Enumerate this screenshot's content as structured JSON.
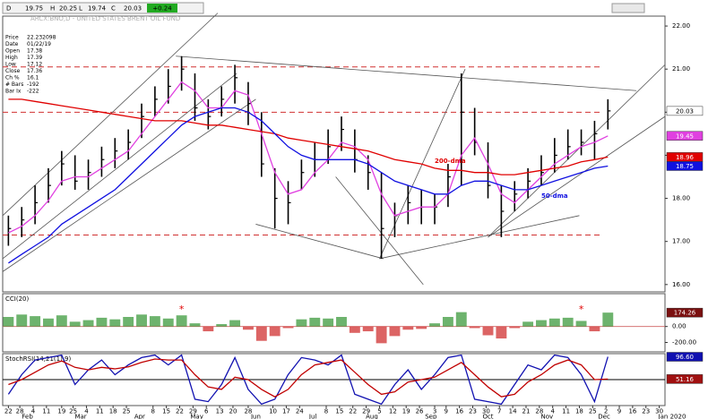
{
  "toolbar": {
    "period": "D",
    "open": 19.75,
    "high_label": "H",
    "high": 20.25,
    "low_label": "L",
    "low": 19.74,
    "close_label": "C",
    "close": 20.03,
    "change": "+0.24",
    "title": "ARCX:BNO,D - UNITED STATES BRENT OIL FUND"
  },
  "info_panel": [
    {
      "label": "Price",
      "value": "22.232098"
    },
    {
      "label": "Date",
      "value": "01/22/19"
    },
    {
      "label": "Open",
      "value": "17.38"
    },
    {
      "label": "High",
      "value": "17.39"
    },
    {
      "label": "Low",
      "value": "17.12"
    },
    {
      "label": "Close",
      "value": "17.36"
    },
    {
      "label": "Ch %",
      "value": "16.1"
    },
    {
      "label": "# Bars",
      "value": "-192"
    },
    {
      "label": "Bar Ix",
      "value": "-222"
    }
  ],
  "chart_data": [
    {
      "type": "ohlc",
      "x": [
        0,
        7,
        14,
        21,
        28,
        35,
        42,
        49,
        56,
        63,
        70,
        77,
        84,
        91,
        98,
        105,
        112,
        119,
        126,
        133,
        140,
        147,
        154,
        161,
        168,
        175,
        182,
        189,
        196,
        203,
        210,
        217,
        224,
        231,
        238,
        245,
        252,
        259,
        266,
        273,
        280,
        287,
        294,
        301,
        308,
        315
      ],
      "high": [
        17.6,
        17.8,
        18.3,
        18.7,
        19.1,
        19.0,
        18.9,
        19.2,
        19.4,
        19.6,
        20.2,
        20.6,
        21.0,
        21.3,
        20.9,
        20.3,
        20.6,
        21.1,
        20.7,
        20.0,
        18.7,
        18.4,
        18.9,
        19.3,
        19.6,
        19.9,
        19.6,
        19.0,
        18.6,
        17.9,
        18.3,
        18.2,
        18.1,
        18.8,
        20.9,
        20.1,
        19.3,
        18.3,
        18.4,
        18.7,
        19.0,
        19.4,
        19.6,
        19.6,
        19.8,
        20.3
      ],
      "low": [
        16.9,
        17.1,
        17.4,
        17.9,
        18.3,
        18.2,
        18.2,
        18.5,
        18.7,
        18.9,
        19.4,
        19.9,
        20.2,
        20.5,
        19.8,
        19.6,
        19.9,
        20.2,
        19.7,
        18.5,
        17.3,
        17.4,
        18.2,
        18.5,
        18.8,
        19.1,
        18.6,
        18.2,
        16.6,
        17.1,
        17.4,
        17.4,
        17.4,
        17.8,
        18.3,
        19.0,
        18.0,
        17.1,
        17.7,
        18.0,
        18.3,
        18.6,
        18.9,
        19.0,
        18.9,
        19.6
      ],
      "close": [
        17.3,
        17.5,
        17.9,
        18.3,
        18.8,
        18.4,
        18.6,
        18.9,
        19.1,
        19.3,
        19.9,
        20.3,
        20.6,
        21.0,
        20.1,
        19.9,
        20.3,
        20.8,
        20.2,
        18.8,
        18.0,
        17.9,
        18.6,
        18.9,
        19.2,
        19.6,
        18.9,
        18.6,
        17.3,
        17.6,
        17.9,
        17.8,
        17.8,
        18.5,
        20.0,
        19.3,
        18.3,
        17.7,
        18.1,
        18.4,
        18.6,
        19.0,
        19.2,
        19.3,
        19.5,
        20.03
      ],
      "color": "#000000",
      "series": [
        {
          "color": "#e040e0",
          "values": [
            17.2,
            17.35,
            17.6,
            17.95,
            18.4,
            18.5,
            18.5,
            18.7,
            18.9,
            19.1,
            19.5,
            19.9,
            20.3,
            20.7,
            20.5,
            20.1,
            20.1,
            20.5,
            20.4,
            19.5,
            18.6,
            18.1,
            18.2,
            18.6,
            18.9,
            19.3,
            19.2,
            18.9,
            18.1,
            17.6,
            17.7,
            17.8,
            17.8,
            18.1,
            19.0,
            19.4,
            18.8,
            18.1,
            17.9,
            18.2,
            18.5,
            18.8,
            19.0,
            19.2,
            19.3,
            19.45
          ]
        },
        {
          "name": "200-dma",
          "color": "#e00000",
          "values": [
            20.3,
            20.3,
            20.25,
            20.2,
            20.15,
            20.1,
            20.05,
            20.0,
            19.95,
            19.9,
            19.85,
            19.8,
            19.8,
            19.8,
            19.75,
            19.7,
            19.7,
            19.65,
            19.6,
            19.55,
            19.5,
            19.4,
            19.35,
            19.3,
            19.25,
            19.2,
            19.15,
            19.1,
            19.0,
            18.9,
            18.85,
            18.8,
            18.7,
            18.65,
            18.65,
            18.6,
            18.6,
            18.55,
            18.55,
            18.6,
            18.65,
            18.7,
            18.75,
            18.85,
            18.9,
            18.96
          ]
        },
        {
          "name": "50-dma",
          "color": "#1010e0",
          "values": [
            16.5,
            16.7,
            16.9,
            17.1,
            17.4,
            17.6,
            17.8,
            18.0,
            18.2,
            18.5,
            18.8,
            19.1,
            19.4,
            19.7,
            19.9,
            20.0,
            20.1,
            20.1,
            20.0,
            19.8,
            19.5,
            19.2,
            19.0,
            18.9,
            18.9,
            18.9,
            18.9,
            18.8,
            18.6,
            18.4,
            18.3,
            18.2,
            18.1,
            18.1,
            18.3,
            18.4,
            18.4,
            18.3,
            18.2,
            18.2,
            18.3,
            18.4,
            18.5,
            18.6,
            18.7,
            18.75
          ]
        }
      ],
      "hlines": [
        21.05,
        20.0,
        17.15
      ],
      "trendlines": [
        [
          -3,
          17.6,
          110,
          22.3
        ],
        [
          -3,
          16.6,
          120,
          20.9
        ],
        [
          -3,
          16.3,
          130,
          20.3
        ],
        [
          88,
          21.3,
          330,
          20.5
        ],
        [
          130,
          17.4,
          197,
          16.6
        ],
        [
          195,
          16.6,
          300,
          17.6
        ],
        [
          195,
          16.6,
          240,
          21.0
        ],
        [
          252,
          17.1,
          345,
          21.1
        ],
        [
          252,
          17.1,
          345,
          19.9
        ],
        [
          172,
          18.5,
          218,
          16.0
        ]
      ],
      "xlim": [
        -3,
        345
      ],
      "ylim": [
        15.83,
        22.23
      ],
      "yticks": [
        {
          "value": 16,
          "label": "16.00"
        },
        {
          "value": 17,
          "label": "17.00"
        },
        {
          "value": 18,
          "label": "18.00"
        },
        {
          "value": 19,
          "label": "19.00"
        },
        {
          "value": 20,
          "label": "20.00"
        },
        {
          "value": 21,
          "label": "21.00"
        },
        {
          "value": 22,
          "label": "22.00"
        }
      ],
      "xticks": [
        {
          "value": 0,
          "label": "22"
        },
        {
          "value": 6,
          "label": "28"
        },
        {
          "value": 13,
          "label": "4"
        },
        {
          "value": 20,
          "label": "11"
        },
        {
          "value": 28,
          "label": "19"
        },
        {
          "value": 34,
          "label": "25"
        },
        {
          "value": 41,
          "label": "4"
        },
        {
          "value": 48,
          "label": "11"
        },
        {
          "value": 55,
          "label": "18"
        },
        {
          "value": 62,
          "label": "25"
        },
        {
          "value": 76,
          "label": "8"
        },
        {
          "value": 83,
          "label": "15"
        },
        {
          "value": 90,
          "label": "22"
        },
        {
          "value": 97,
          "label": "29"
        },
        {
          "value": 104,
          "label": "6"
        },
        {
          "value": 111,
          "label": "13"
        },
        {
          "value": 118,
          "label": "20"
        },
        {
          "value": 126,
          "label": "28"
        },
        {
          "value": 139,
          "label": "10"
        },
        {
          "value": 146,
          "label": "17"
        },
        {
          "value": 153,
          "label": "24"
        },
        {
          "value": 167,
          "label": "8"
        },
        {
          "value": 174,
          "label": "15"
        },
        {
          "value": 181,
          "label": "22"
        },
        {
          "value": 188,
          "label": "29"
        },
        {
          "value": 195,
          "label": "5"
        },
        {
          "value": 202,
          "label": "12"
        },
        {
          "value": 209,
          "label": "19"
        },
        {
          "value": 216,
          "label": "26"
        },
        {
          "value": 224,
          "label": "3"
        },
        {
          "value": 230,
          "label": "9"
        },
        {
          "value": 237,
          "label": "16"
        },
        {
          "value": 244,
          "label": "23"
        },
        {
          "value": 251,
          "label": "30"
        },
        {
          "value": 258,
          "label": "7"
        },
        {
          "value": 265,
          "label": "14"
        },
        {
          "value": 272,
          "label": "21"
        },
        {
          "value": 279,
          "label": "28"
        },
        {
          "value": 286,
          "label": "4"
        },
        {
          "value": 293,
          "label": "11"
        },
        {
          "value": 300,
          "label": "18"
        },
        {
          "value": 307,
          "label": "25"
        },
        {
          "value": 314,
          "label": "2"
        },
        {
          "value": 321,
          "label": "9"
        },
        {
          "value": 328,
          "label": "16"
        },
        {
          "value": 335,
          "label": "23"
        },
        {
          "value": 342,
          "label": "30"
        }
      ],
      "xmonths": [
        {
          "value": 10,
          "label": "Feb"
        },
        {
          "value": 38,
          "label": "Mar"
        },
        {
          "value": 69,
          "label": "Apr"
        },
        {
          "value": 99,
          "label": "May"
        },
        {
          "value": 130,
          "label": "Jun"
        },
        {
          "value": 160,
          "label": "Jul"
        },
        {
          "value": 191,
          "label": "Aug"
        },
        {
          "value": 222,
          "label": "Sep"
        },
        {
          "value": 252,
          "label": "Oct"
        },
        {
          "value": 283,
          "label": "Nov"
        },
        {
          "value": 313,
          "label": "Dec"
        },
        {
          "value": 352,
          "label": "Jan 2020"
        }
      ]
    },
    {
      "type": "bar",
      "title": "CCI(20)",
      "values": [
        120,
        150,
        130,
        100,
        140,
        60,
        80,
        110,
        90,
        120,
        150,
        130,
        100,
        140,
        40,
        -60,
        30,
        80,
        -40,
        -180,
        -120,
        -20,
        90,
        110,
        100,
        120,
        -80,
        -60,
        -210,
        -120,
        -40,
        -30,
        40,
        120,
        180,
        -20,
        -110,
        -150,
        -20,
        60,
        80,
        100,
        110,
        70,
        -60,
        174.26
      ],
      "ylim": [
        -318,
        412
      ],
      "yticks": [
        {
          "value": 0,
          "label": "0.00"
        },
        {
          "value": -200,
          "label": "-200.00"
        }
      ],
      "annotations": [
        "*",
        "*"
      ]
    },
    {
      "type": "line",
      "title": "StochRSI(14,21(1),9)",
      "series": [
        {
          "color": "#1010b0",
          "last_label": "96.60",
          "values": [
            20,
            60,
            90,
            95,
            100,
            40,
            70,
            90,
            60,
            80,
            95,
            100,
            80,
            100,
            10,
            5,
            40,
            95,
            30,
            0,
            10,
            60,
            95,
            90,
            80,
            100,
            20,
            10,
            0,
            40,
            70,
            30,
            60,
            95,
            100,
            10,
            5,
            0,
            40,
            80,
            70,
            100,
            95,
            60,
            5,
            96.6
          ]
        },
        {
          "color": "#c00000",
          "values": [
            40,
            50,
            65,
            80,
            88,
            75,
            70,
            75,
            72,
            76,
            85,
            92,
            90,
            90,
            60,
            35,
            30,
            55,
            50,
            30,
            15,
            30,
            60,
            80,
            85,
            90,
            65,
            40,
            20,
            25,
            45,
            50,
            55,
            70,
            85,
            60,
            35,
            15,
            20,
            45,
            60,
            80,
            90,
            80,
            50,
            51.16
          ]
        }
      ],
      "hlines": [
        50
      ],
      "ylim": [
        -3,
        103
      ]
    }
  ]
}
